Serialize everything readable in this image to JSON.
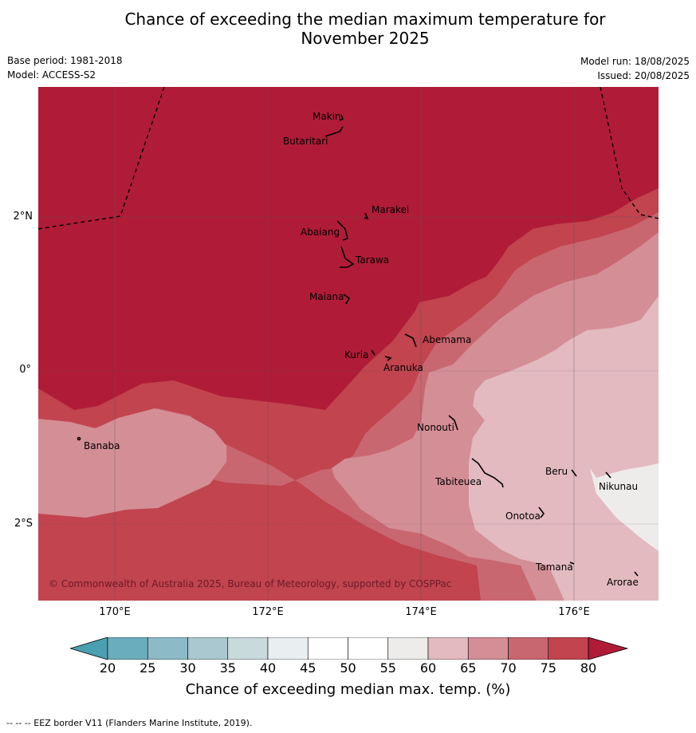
{
  "title_line1": "Chance of exceeding the median maximum temperature for",
  "title_line2": "November 2025",
  "meta": {
    "base_period": "Base period: 1981-2018",
    "model": "Model: ACCESS-S2",
    "model_run": "Model run: 18/08/2025",
    "issued": "Issued: 20/08/2025"
  },
  "lat_labels": [
    "2°N",
    "0°",
    "2°S"
  ],
  "lon_labels": [
    "170°E",
    "172°E",
    "174°E",
    "176°E"
  ],
  "places": [
    {
      "name": "Makin",
      "key": "makin"
    },
    {
      "name": "Butaritari",
      "key": "butaritari"
    },
    {
      "name": "Marakei",
      "key": "marakei"
    },
    {
      "name": "Abaiang",
      "key": "abaiang"
    },
    {
      "name": "Tarawa",
      "key": "tarawa"
    },
    {
      "name": "Maiana",
      "key": "maiana"
    },
    {
      "name": "Abemama",
      "key": "abemama"
    },
    {
      "name": "Kuria",
      "key": "kuria"
    },
    {
      "name": "Aranuka",
      "key": "aranuka"
    },
    {
      "name": "Banaba",
      "key": "banaba"
    },
    {
      "name": "Nonouti",
      "key": "nonouti"
    },
    {
      "name": "Beru",
      "key": "beru"
    },
    {
      "name": "Tabiteuea",
      "key": "tabiteuea"
    },
    {
      "name": "Nikunau",
      "key": "nikunau"
    },
    {
      "name": "Onotoa",
      "key": "onotoa"
    },
    {
      "name": "Tamana",
      "key": "tamana"
    },
    {
      "name": "Arorae",
      "key": "arorae"
    }
  ],
  "copyright": "© Commonwealth of Australia 2025, Bureau of Meteorology, supported by COSPPac",
  "colorbar": {
    "ticks": [
      "20",
      "25",
      "30",
      "35",
      "40",
      "45",
      "50",
      "55",
      "60",
      "65",
      "70",
      "75",
      "80"
    ],
    "colors": [
      "#6aadbd",
      "#8cbac6",
      "#a9c8cf",
      "#c9dadd",
      "#e9eff1",
      "#ffffff",
      "#ffffff",
      "#eeecea",
      "#e2bac0",
      "#d48e96",
      "#c96771",
      "#c1444f"
    ],
    "under_color": "#4a9fb0",
    "over_color": "#b01c37",
    "label": "Chance of exceeding median max. temp. (%)"
  },
  "colors": {
    "c80": "#b01c37",
    "c75": "#c1444f",
    "c70": "#c96771",
    "c65": "#d48e96",
    "c60": "#e2bac0",
    "c55": "#eeecea"
  },
  "footer": "--  --  -- EEZ border V11 (Flanders Marine Institute, 2019)."
}
